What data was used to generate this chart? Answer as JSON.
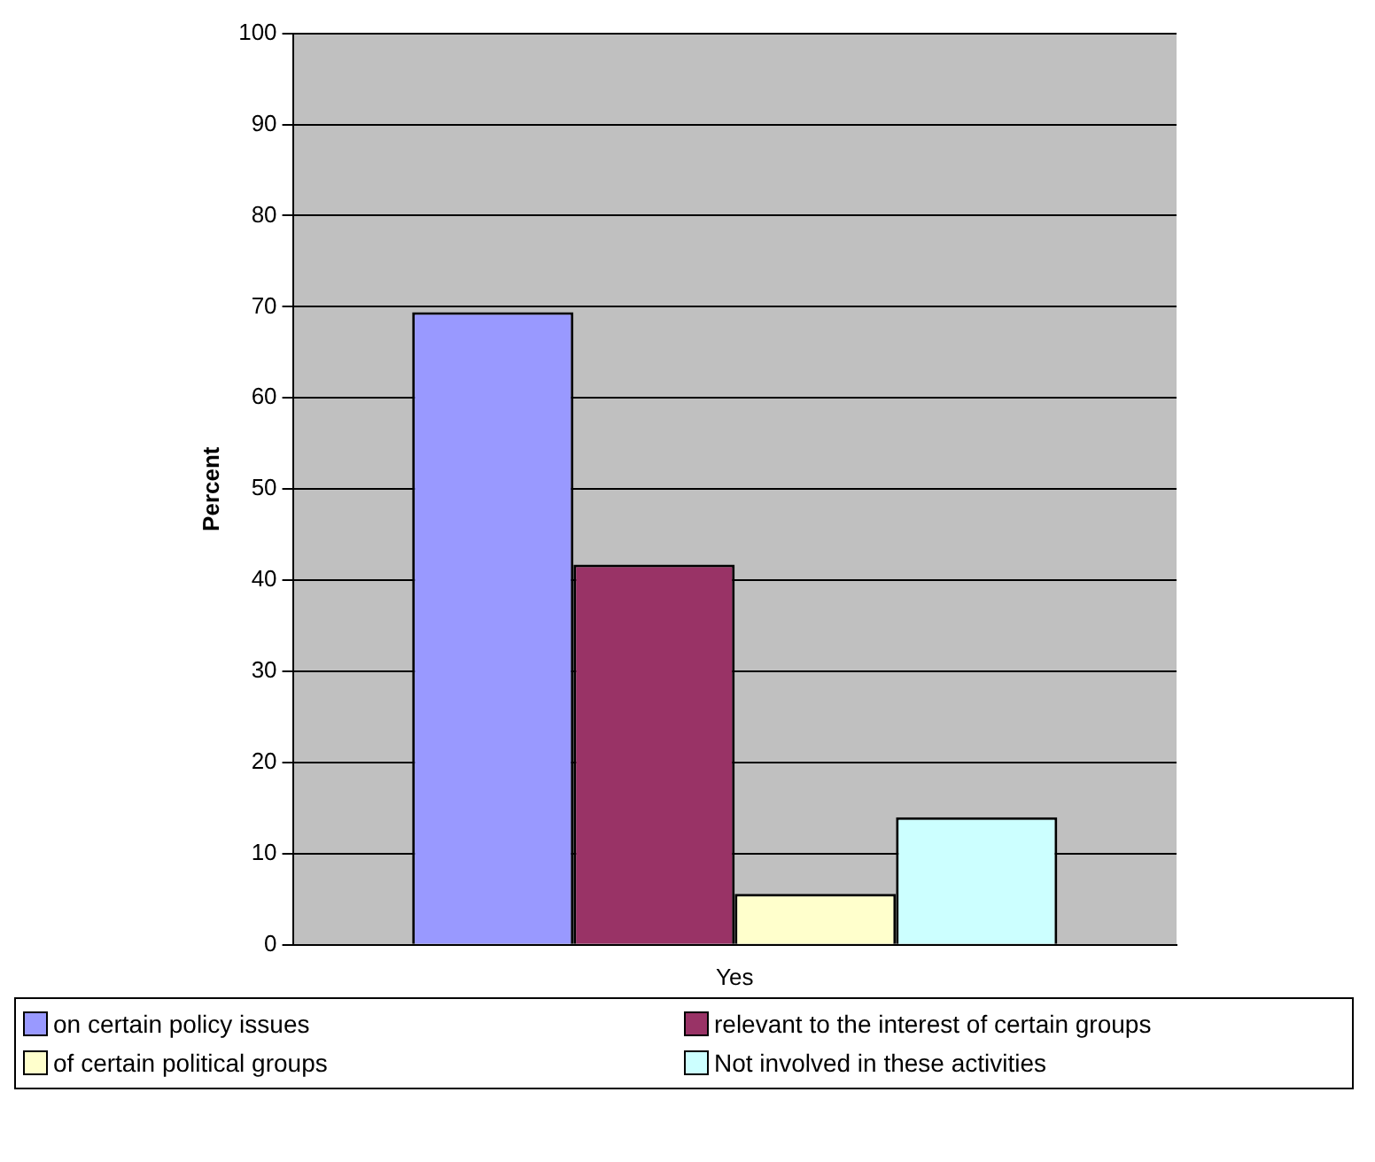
{
  "chart_data": {
    "type": "bar",
    "ylabel": "Percent",
    "categories": [
      "Yes"
    ],
    "series": [
      {
        "name": "on certain policy issues",
        "color": "#9999ff",
        "values": [
          69.4
        ]
      },
      {
        "name": "relevant to the interest of certain groups",
        "color": "#993366",
        "values": [
          41.7
        ]
      },
      {
        "name": "of certain political groups",
        "color": "#ffffcc",
        "values": [
          5.6
        ]
      },
      {
        "name": "Not involved in these activities",
        "color": "#ccffff",
        "values": [
          14
        ]
      }
    ],
    "ylim": [
      0,
      100
    ],
    "yticks": [
      0,
      10,
      20,
      30,
      40,
      50,
      60,
      70,
      80,
      90,
      100
    ],
    "grid": "y",
    "legend": "bottom"
  }
}
